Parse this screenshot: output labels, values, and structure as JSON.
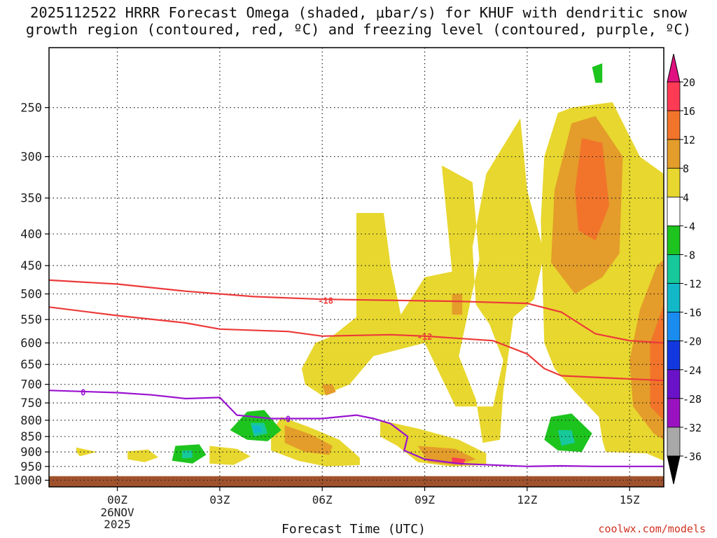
{
  "title": "2025112522 HRRR Forecast Omega (shaded, μbar/s) for KHUF with dendritic snow\ngrowth region (contoured, red, ºC) and freezing level (contoured, purple, ºC)",
  "credit": "coolwx.com/models",
  "chart_data": {
    "type": "heatmap",
    "title": "2025112522 HRRR Forecast Omega (shaded, μbar/s) for KHUF with dendritic snow growth region (contoured, red, ºC) and freezing level (contoured, purple, ºC)",
    "xlabel": "Forecast Time (UTC)",
    "ylabel": "",
    "x_range_hours": [
      -2,
      16
    ],
    "x_ticks": [
      {
        "value": 0,
        "label": "00Z",
        "sub": [
          "26NOV",
          "2025"
        ]
      },
      {
        "value": 3,
        "label": "03Z"
      },
      {
        "value": 6,
        "label": "06Z"
      },
      {
        "value": 9,
        "label": "09Z"
      },
      {
        "value": 12,
        "label": "12Z"
      },
      {
        "value": 15,
        "label": "15Z"
      }
    ],
    "y_ticks_hpa": [
      250,
      300,
      350,
      400,
      450,
      500,
      550,
      600,
      650,
      700,
      750,
      800,
      850,
      900,
      950,
      1000
    ],
    "y_range_hpa": [
      200,
      1025
    ],
    "grid": true,
    "colorbar": {
      "units": "μbar/s",
      "labels": [
        20,
        16,
        12,
        8,
        4,
        -4,
        -8,
        -12,
        -16,
        -20,
        -24,
        -28,
        -32,
        -36
      ],
      "colors_top_down": [
        "#ff3a55",
        "#f2742a",
        "#e49c2a",
        "#e8d72e",
        "#ffffff",
        "#1ec41e",
        "#16c89a",
        "#12b8c8",
        "#1a8cf0",
        "#1438e0",
        "#6a12c8",
        "#9a12c0",
        "#a8a8a8"
      ],
      "top_arrow_color": "#e01080",
      "bottom_arrow_color": "#000000"
    },
    "contours": [
      {
        "name": "-18",
        "color": "#ec3a3a",
        "label_pos": [
          6.1,
          512
        ],
        "points": [
          [
            -2,
            475
          ],
          [
            0,
            482
          ],
          [
            2,
            495
          ],
          [
            4,
            505
          ],
          [
            6,
            510
          ],
          [
            8,
            512
          ],
          [
            10,
            514
          ],
          [
            12,
            518
          ],
          [
            13,
            535
          ],
          [
            14,
            580
          ],
          [
            15,
            595
          ],
          [
            16,
            600
          ]
        ]
      },
      {
        "name": "-12",
        "color": "#ec3a3a",
        "label_pos": [
          9.0,
          585
        ],
        "points": [
          [
            -2,
            525
          ],
          [
            0,
            542
          ],
          [
            2,
            557
          ],
          [
            3,
            570
          ],
          [
            5,
            575
          ],
          [
            6,
            585
          ],
          [
            8,
            582
          ],
          [
            9,
            585
          ],
          [
            11,
            595
          ],
          [
            12,
            625
          ],
          [
            12.5,
            660
          ],
          [
            13,
            678
          ],
          [
            16,
            690
          ]
        ]
      },
      {
        "name": "0",
        "color": "#9a12d0",
        "label_pos": [
          -1,
          720
        ],
        "points": [
          [
            -2,
            716
          ],
          [
            0,
            722
          ],
          [
            1,
            728
          ],
          [
            2,
            738
          ],
          [
            3,
            735
          ],
          [
            3.5,
            785
          ],
          [
            4.5,
            795
          ],
          [
            6,
            795
          ],
          [
            7,
            785
          ],
          [
            7.5,
            795
          ],
          [
            8,
            810
          ],
          [
            8.5,
            850
          ],
          [
            8.4,
            895
          ],
          [
            9,
            925
          ],
          [
            10,
            940
          ],
          [
            11,
            945
          ],
          [
            12,
            950
          ],
          [
            13,
            948
          ],
          [
            14,
            950
          ],
          [
            16,
            950
          ]
        ]
      },
      {
        "name": "0b",
        "color": "#9a12d0",
        "label_pos": [
          5,
          795
        ],
        "points": []
      }
    ],
    "omega_regions": [
      {
        "level": 4,
        "color": "#e8d72e",
        "points": [
          [
            7.0,
            370
          ],
          [
            7.8,
            370
          ],
          [
            8.0,
            450
          ],
          [
            8.3,
            540
          ],
          [
            9.0,
            470
          ],
          [
            9.8,
            460
          ],
          [
            9.5,
            310
          ],
          [
            10.4,
            330
          ],
          [
            10.6,
            440
          ],
          [
            10.0,
            630
          ],
          [
            10.5,
            740
          ],
          [
            10.7,
            870
          ],
          [
            11.2,
            860
          ],
          [
            11.3,
            720
          ],
          [
            11.6,
            545
          ],
          [
            12.2,
            510
          ],
          [
            12.5,
            430
          ],
          [
            12.0,
            340
          ],
          [
            11.8,
            260
          ],
          [
            10.8,
            320
          ],
          [
            10.4,
            420
          ],
          [
            10.5,
            520
          ],
          [
            10.9,
            560
          ],
          [
            11.3,
            640
          ],
          [
            11.0,
            760
          ],
          [
            9.9,
            760
          ],
          [
            9.0,
            600
          ],
          [
            7.5,
            630
          ],
          [
            6.8,
            700
          ],
          [
            6.0,
            730
          ],
          [
            5.5,
            700
          ],
          [
            5.4,
            660
          ],
          [
            5.8,
            600
          ],
          [
            6.3,
            585
          ],
          [
            7.0,
            545
          ]
        ]
      },
      {
        "level": 4,
        "color": "#e8d72e",
        "points": [
          [
            12.9,
            255
          ],
          [
            13.3,
            250
          ],
          [
            14.5,
            245
          ],
          [
            15.3,
            300
          ],
          [
            16,
            320
          ],
          [
            16,
            930
          ],
          [
            15.5,
            905
          ],
          [
            14.3,
            900
          ],
          [
            14.2,
            860
          ],
          [
            14.1,
            790
          ],
          [
            13.4,
            720
          ],
          [
            12.8,
            660
          ],
          [
            12.5,
            600
          ],
          [
            12.4,
            380
          ],
          [
            12.5,
            300
          ]
        ]
      },
      {
        "level": 4,
        "color": "#e8d72e",
        "points": [
          [
            4.8,
            790
          ],
          [
            5.6,
            820
          ],
          [
            6.5,
            860
          ],
          [
            7.1,
            920
          ],
          [
            7.1,
            945
          ],
          [
            6.1,
            950
          ],
          [
            5.3,
            930
          ],
          [
            4.5,
            895
          ],
          [
            4.5,
            840
          ]
        ]
      },
      {
        "level": 4,
        "color": "#e8d72e",
        "points": [
          [
            7.7,
            800
          ],
          [
            8.8,
            825
          ],
          [
            10.0,
            860
          ],
          [
            10.8,
            905
          ],
          [
            10.8,
            945
          ],
          [
            9.8,
            950
          ],
          [
            8.8,
            935
          ],
          [
            8.2,
            880
          ],
          [
            7.7,
            850
          ]
        ]
      },
      {
        "level": 4,
        "color": "#e8d72e",
        "points": [
          [
            2.7,
            880
          ],
          [
            3.5,
            890
          ],
          [
            3.9,
            915
          ],
          [
            3.4,
            945
          ],
          [
            2.7,
            940
          ]
        ]
      },
      {
        "level": 4,
        "color": "#e8d72e",
        "points": [
          [
            0.3,
            898
          ],
          [
            0.9,
            892
          ],
          [
            1.2,
            918
          ],
          [
            0.8,
            935
          ],
          [
            0.3,
            925
          ]
        ]
      },
      {
        "level": 4,
        "color": "#e8d72e",
        "points": [
          [
            -1.2,
            885
          ],
          [
            -0.6,
            900
          ],
          [
            -1.1,
            915
          ],
          [
            -1.2,
            900
          ]
        ]
      },
      {
        "level": 8,
        "color": "#e49c2a",
        "points": [
          [
            13.3,
            265
          ],
          [
            14.0,
            258
          ],
          [
            14.8,
            300
          ],
          [
            14.7,
            430
          ],
          [
            14.2,
            470
          ],
          [
            13.4,
            500
          ],
          [
            12.7,
            445
          ],
          [
            12.8,
            340
          ]
        ]
      },
      {
        "level": 12,
        "color": "#f2742a",
        "points": [
          [
            13.6,
            280
          ],
          [
            14.2,
            285
          ],
          [
            14.4,
            360
          ],
          [
            14.0,
            410
          ],
          [
            13.5,
            395
          ],
          [
            13.4,
            340
          ]
        ]
      },
      {
        "level": 8,
        "color": "#e49c2a",
        "points": [
          [
            15.8,
            450
          ],
          [
            16,
            440
          ],
          [
            16,
            860
          ],
          [
            15.7,
            840
          ],
          [
            15.1,
            760
          ],
          [
            15.0,
            640
          ],
          [
            15.3,
            530
          ]
        ]
      },
      {
        "level": 12,
        "color": "#f2742a",
        "points": [
          [
            16,
            520
          ],
          [
            16,
            800
          ],
          [
            15.6,
            760
          ],
          [
            15.6,
            600
          ]
        ]
      },
      {
        "level": 8,
        "color": "#e49c2a",
        "points": [
          [
            4.9,
            815
          ],
          [
            5.7,
            845
          ],
          [
            6.3,
            880
          ],
          [
            6.2,
            910
          ],
          [
            5.5,
            900
          ],
          [
            4.9,
            870
          ]
        ]
      },
      {
        "level": 8,
        "color": "#e49c2a",
        "points": [
          [
            8.8,
            880
          ],
          [
            9.9,
            890
          ],
          [
            10.5,
            925
          ],
          [
            9.9,
            945
          ],
          [
            9.1,
            935
          ]
        ]
      },
      {
        "level": 16,
        "color": "#ff3a55",
        "points": [
          [
            9.8,
            918
          ],
          [
            10.2,
            925
          ],
          [
            10.1,
            945
          ],
          [
            9.8,
            940
          ]
        ]
      },
      {
        "level": 8,
        "color": "#e49c2a",
        "points": [
          [
            6.0,
            700
          ],
          [
            6.3,
            700
          ],
          [
            6.4,
            720
          ],
          [
            6.1,
            730
          ]
        ]
      },
      {
        "level": 8,
        "color": "#e49c2a",
        "points": [
          [
            9.8,
            500
          ],
          [
            10.1,
            500
          ],
          [
            10.1,
            540
          ],
          [
            9.8,
            540
          ]
        ]
      },
      {
        "level": -4,
        "color": "#1ec41e",
        "points": [
          [
            3.8,
            775
          ],
          [
            4.3,
            770
          ],
          [
            4.8,
            830
          ],
          [
            4.4,
            865
          ],
          [
            3.8,
            860
          ],
          [
            3.3,
            830
          ]
        ]
      },
      {
        "level": -8,
        "color": "#16c89a",
        "points": [
          [
            3.9,
            808
          ],
          [
            4.3,
            808
          ],
          [
            4.4,
            840
          ],
          [
            4.0,
            850
          ]
        ]
      },
      {
        "level": -12,
        "color": "#12b8c8",
        "points": [
          [
            3.95,
            815
          ],
          [
            4.2,
            818
          ],
          [
            4.25,
            835
          ],
          [
            4.0,
            840
          ]
        ]
      },
      {
        "level": -4,
        "color": "#1ec41e",
        "points": [
          [
            12.7,
            790
          ],
          [
            13.3,
            780
          ],
          [
            13.9,
            840
          ],
          [
            13.6,
            900
          ],
          [
            12.9,
            895
          ],
          [
            12.5,
            860
          ]
        ]
      },
      {
        "level": -8,
        "color": "#16c89a",
        "points": [
          [
            12.9,
            830
          ],
          [
            13.3,
            830
          ],
          [
            13.4,
            870
          ],
          [
            13.0,
            880
          ]
        ]
      },
      {
        "level": -4,
        "color": "#1ec41e",
        "points": [
          [
            1.7,
            880
          ],
          [
            2.4,
            875
          ],
          [
            2.6,
            910
          ],
          [
            2.2,
            940
          ],
          [
            1.6,
            930
          ]
        ]
      },
      {
        "level": -8,
        "color": "#16c89a",
        "points": [
          [
            1.9,
            895
          ],
          [
            2.2,
            895
          ],
          [
            2.2,
            920
          ],
          [
            1.9,
            922
          ]
        ]
      },
      {
        "level": -4,
        "color": "#1ec41e",
        "points": [
          [
            13.9,
            215
          ],
          [
            14.2,
            212
          ],
          [
            14.2,
            228
          ],
          [
            14.0,
            228
          ]
        ]
      }
    ],
    "ground_level_hpa": 985,
    "ground_color": "#a0522d"
  }
}
